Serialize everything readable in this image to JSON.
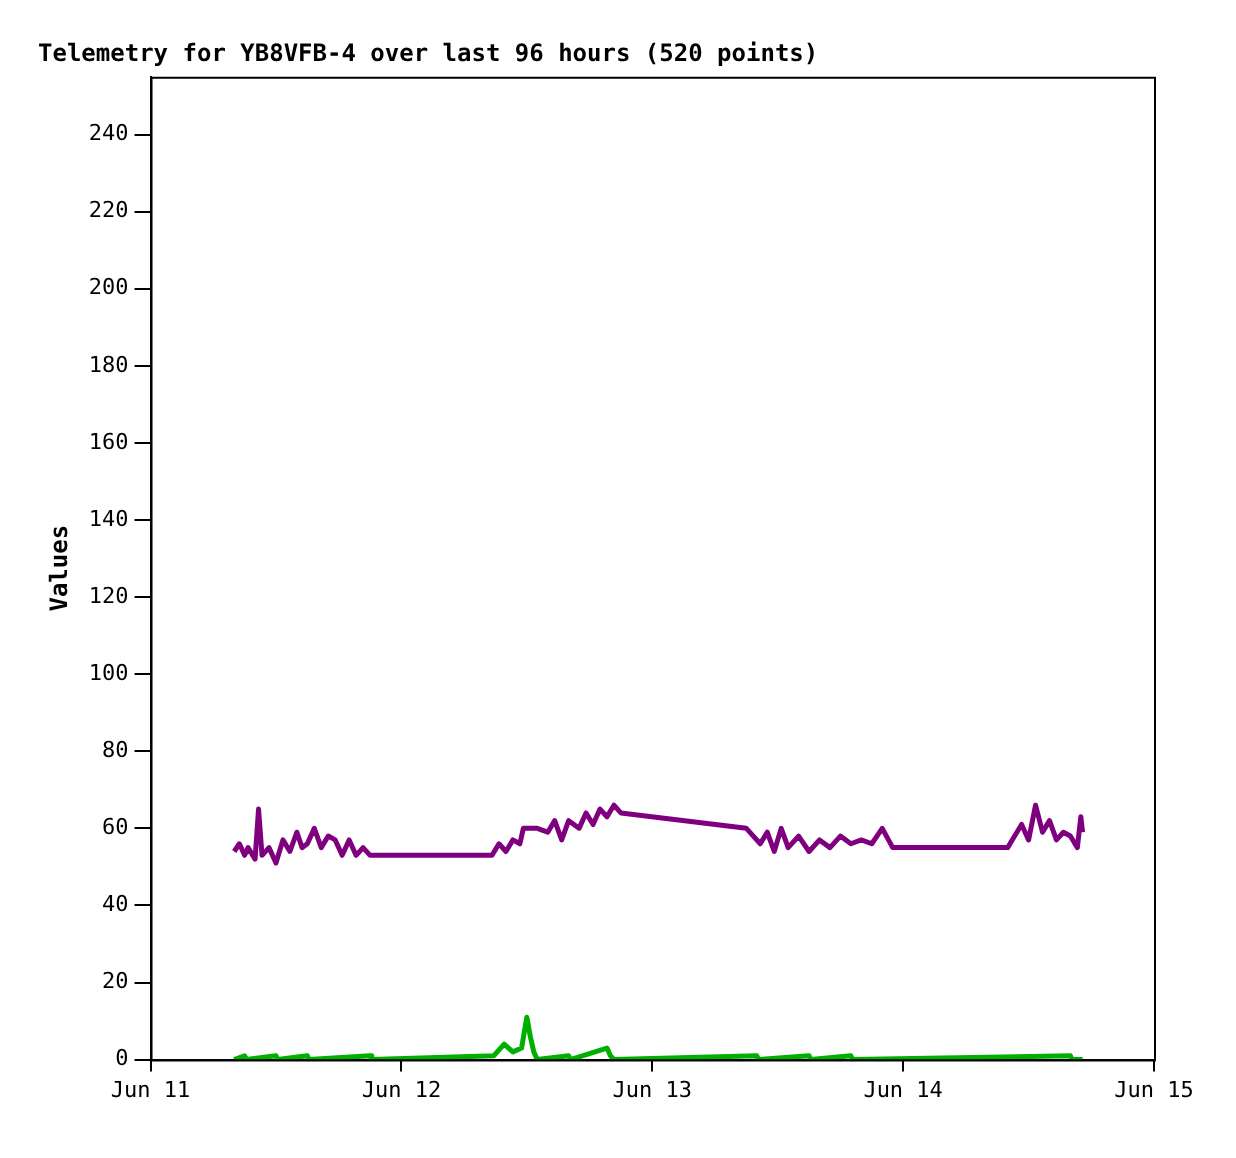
{
  "chart_data": {
    "type": "line",
    "title": "Telemetry for YB8VFB-4 over last 96 hours (520 points)",
    "ylabel": "Values",
    "xlim": [
      "--06-11",
      "--06-15"
    ],
    "xticks": [
      {
        "value": "--06-11",
        "label": "Jun 11"
      },
      {
        "value": "--06-12",
        "label": "Jun 12"
      },
      {
        "value": "--06-13",
        "label": "Jun 13"
      },
      {
        "value": "--06-14",
        "label": "Jun 14"
      },
      {
        "value": "--06-15",
        "label": "Jun 15"
      }
    ],
    "ylim": [
      0,
      255
    ],
    "yticks": [
      0,
      20,
      40,
      60,
      80,
      100,
      120,
      140,
      160,
      180,
      200,
      220,
      240
    ],
    "legend": false,
    "marker": "none",
    "line_style": "solid",
    "series": [
      {
        "color": "#7f007f",
        "x": [
          "--06-11T08:00",
          "--06-11T08:30",
          "--06-11T09:00",
          "--06-11T09:20",
          "--06-11T10:00",
          "--06-11T10:20",
          "--06-11T10:40",
          "--06-11T11:20",
          "--06-11T12:00",
          "--06-11T12:40",
          "--06-11T13:20",
          "--06-11T14:00",
          "--06-11T14:30",
          "--06-11T15:00",
          "--06-11T15:40",
          "--06-11T16:20",
          "--06-11T17:00",
          "--06-11T17:40",
          "--06-11T18:20",
          "--06-11T19:00",
          "--06-11T19:40",
          "--06-11T20:20",
          "--06-11T21:00",
          "--06-11T21:40",
          "--06-12T08:40",
          "--06-12T09:20",
          "--06-12T10:00",
          "--06-12T10:40",
          "--06-12T11:20",
          "--06-12T11:40",
          "--06-12T13:00",
          "--06-12T14:00",
          "--06-12T14:40",
          "--06-12T15:20",
          "--06-12T16:00",
          "--06-12T17:00",
          "--06-12T17:40",
          "--06-12T18:20",
          "--06-12T19:00",
          "--06-12T19:40",
          "--06-12T20:20",
          "--06-12T21:00",
          "--06-13T09:00",
          "--06-13T09:40",
          "--06-13T10:20",
          "--06-13T11:00",
          "--06-13T11:40",
          "--06-13T12:20",
          "--06-13T13:00",
          "--06-13T14:00",
          "--06-13T15:00",
          "--06-13T16:00",
          "--06-13T17:00",
          "--06-13T18:00",
          "--06-13T19:00",
          "--06-13T20:00",
          "--06-13T21:00",
          "--06-13T22:00",
          "--06-13T23:00",
          "--06-14T10:00",
          "--06-14T10:40",
          "--06-14T11:20",
          "--06-14T12:00",
          "--06-14T12:40",
          "--06-14T13:20",
          "--06-14T14:00",
          "--06-14T14:40",
          "--06-14T15:20",
          "--06-14T16:00",
          "--06-14T16:40",
          "--06-14T17:00",
          "--06-14T17:10"
        ],
        "values": [
          54,
          56,
          53,
          55,
          52,
          65,
          53,
          55,
          51,
          57,
          54,
          59,
          55,
          56,
          60,
          55,
          58,
          57,
          53,
          57,
          53,
          55,
          53,
          53,
          53,
          56,
          54,
          57,
          56,
          60,
          60,
          59,
          62,
          57,
          62,
          60,
          64,
          61,
          65,
          63,
          66,
          64,
          60,
          58,
          56,
          59,
          54,
          60,
          55,
          58,
          54,
          57,
          55,
          58,
          56,
          57,
          56,
          60,
          55,
          55,
          58,
          61,
          57,
          66,
          59,
          62,
          57,
          59,
          58,
          55,
          63,
          59
        ]
      },
      {
        "color": "#00b000",
        "x": [
          "--06-11T08:00",
          "--06-11T09:00",
          "--06-11T09:10",
          "--06-11T12:00",
          "--06-11T12:10",
          "--06-11T15:00",
          "--06-11T15:10",
          "--06-11T21:00",
          "--06-11T21:10",
          "--06-12T08:50",
          "--06-12T09:50",
          "--06-12T10:40",
          "--06-12T11:30",
          "--06-12T12:00",
          "--06-12T12:20",
          "--06-12T12:40",
          "--06-12T13:00",
          "--06-12T16:00",
          "--06-12T16:10",
          "--06-12T19:40",
          "--06-12T20:00",
          "--06-12T20:20",
          "--06-13T10:00",
          "--06-13T10:10",
          "--06-13T15:00",
          "--06-13T15:10",
          "--06-13T19:00",
          "--06-13T19:10",
          "--06-14T16:00",
          "--06-14T16:10",
          "--06-14T17:10"
        ],
        "values": [
          0,
          1,
          0,
          1,
          0,
          1,
          0,
          1,
          0,
          1,
          4,
          2,
          3,
          11,
          6,
          2,
          0,
          1,
          0,
          3,
          1,
          0,
          1,
          0,
          1,
          0,
          1,
          0,
          1,
          0,
          0
        ]
      }
    ]
  }
}
